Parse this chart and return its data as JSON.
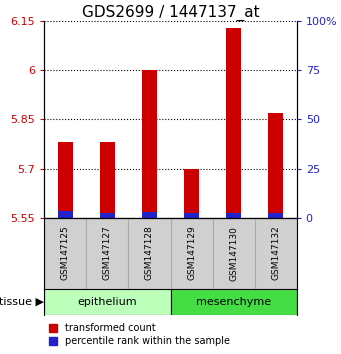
{
  "title": "GDS2699 / 1447137_at",
  "samples": [
    "GSM147125",
    "GSM147127",
    "GSM147128",
    "GSM147129",
    "GSM147130",
    "GSM147132"
  ],
  "red_values": [
    5.78,
    5.78,
    6.0,
    5.7,
    6.13,
    5.87
  ],
  "blue_values": [
    5.572,
    5.565,
    5.567,
    5.565,
    5.565,
    5.565
  ],
  "bar_bottom": 5.55,
  "ylim": [
    5.55,
    6.15
  ],
  "yticks_left": [
    5.55,
    5.7,
    5.85,
    6.0,
    6.15
  ],
  "ytick_labels_left": [
    "5.55",
    "5.7",
    "5.85",
    "6",
    "6.15"
  ],
  "yticks_right_pct": [
    0,
    25,
    50,
    75,
    100
  ],
  "ytick_labels_right": [
    "0",
    "25",
    "50",
    "75",
    "100%"
  ],
  "groups": [
    {
      "label": "epithelium",
      "indices": [
        0,
        1,
        2
      ],
      "color": "#bbffbb"
    },
    {
      "label": "mesenchyme",
      "indices": [
        3,
        4,
        5
      ],
      "color": "#44dd44"
    }
  ],
  "tissue_label": "tissue",
  "legend_red": "transformed count",
  "legend_blue": "percentile rank within the sample",
  "red_color": "#cc0000",
  "blue_color": "#2222cc",
  "title_fontsize": 11,
  "tick_color_left": "#cc0000",
  "tick_color_right": "#2222cc",
  "bar_width": 0.35,
  "label_fontsize": 7,
  "tissue_fontsize": 8,
  "legend_fontsize": 7
}
